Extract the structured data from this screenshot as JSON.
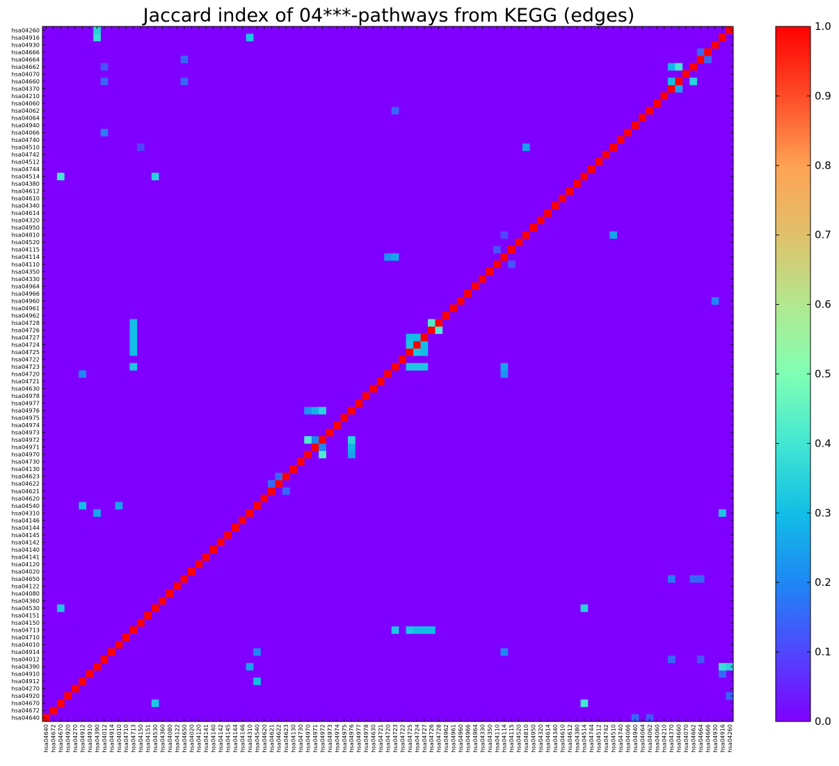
{
  "chart_data": {
    "type": "heatmap",
    "title": "Jaccard index of 04***-pathways from KEGG (edges)",
    "xlabel": "",
    "ylabel": "",
    "labels": [
      "hsa04640",
      "hsa04672",
      "hsa04670",
      "hsa04920",
      "hsa04270",
      "hsa04912",
      "hsa04910",
      "hsa04390",
      "hsa04012",
      "hsa04914",
      "hsa04010",
      "hsa04710",
      "hsa04713",
      "hsa04150",
      "hsa04151",
      "hsa04530",
      "hsa04360",
      "hsa04080",
      "hsa04122",
      "hsa04650",
      "hsa04020",
      "hsa04120",
      "hsa04141",
      "hsa04140",
      "hsa04142",
      "hsa04145",
      "hsa04144",
      "hsa04146",
      "hsa04310",
      "hsa04540",
      "hsa04620",
      "hsa04621",
      "hsa04622",
      "hsa04623",
      "hsa04130",
      "hsa04730",
      "hsa04970",
      "hsa04971",
      "hsa04972",
      "hsa04973",
      "hsa04974",
      "hsa04975",
      "hsa04976",
      "hsa04977",
      "hsa04978",
      "hsa04630",
      "hsa04721",
      "hsa04720",
      "hsa04723",
      "hsa04722",
      "hsa04725",
      "hsa04724",
      "hsa04727",
      "hsa04726",
      "hsa04728",
      "hsa04962",
      "hsa04961",
      "hsa04960",
      "hsa04966",
      "hsa04964",
      "hsa04330",
      "hsa04350",
      "hsa04110",
      "hsa04114",
      "hsa04115",
      "hsa04520",
      "hsa04810",
      "hsa04950",
      "hsa04320",
      "hsa04614",
      "hsa04340",
      "hsa04610",
      "hsa04612",
      "hsa04380",
      "hsa04514",
      "hsa04744",
      "hsa04512",
      "hsa04742",
      "hsa04510",
      "hsa04740",
      "hsa04066",
      "hsa04940",
      "hsa04064",
      "hsa04062",
      "hsa04060",
      "hsa04210",
      "hsa04370",
      "hsa04660",
      "hsa04070",
      "hsa04662",
      "hsa04664",
      "hsa04666",
      "hsa04930",
      "hsa04916",
      "hsa04260"
    ],
    "diagonal_value": 1.0,
    "background_value": 0.0,
    "highlights": [
      {
        "row": "hsa04916",
        "col": "hsa04390",
        "value": 0.38
      },
      {
        "row": "hsa04390",
        "col": "hsa04916",
        "value": 0.38
      },
      {
        "row": "hsa04916",
        "col": "hsa04310",
        "value": 0.32
      },
      {
        "row": "hsa04310",
        "col": "hsa04916",
        "value": 0.32
      },
      {
        "row": "hsa04514",
        "col": "hsa04670",
        "value": 0.4
      },
      {
        "row": "hsa04670",
        "col": "hsa04514",
        "value": 0.4
      },
      {
        "row": "hsa04514",
        "col": "hsa04530",
        "value": 0.35
      },
      {
        "row": "hsa04530",
        "col": "hsa04514",
        "value": 0.35
      },
      {
        "row": "hsa04510",
        "col": "hsa04810",
        "value": 0.25
      },
      {
        "row": "hsa04810",
        "col": "hsa04510",
        "value": 0.25
      },
      {
        "row": "hsa04660",
        "col": "hsa04370",
        "value": 0.3
      },
      {
        "row": "hsa04660",
        "col": "hsa04662",
        "value": 0.35
      },
      {
        "row": "hsa04662",
        "col": "hsa04660",
        "value": 0.4
      },
      {
        "row": "hsa04662",
        "col": "hsa04370",
        "value": 0.28
      },
      {
        "row": "hsa04370",
        "col": "hsa04660",
        "value": 0.25
      },
      {
        "row": "hsa04664",
        "col": "hsa04666",
        "value": 0.15
      },
      {
        "row": "hsa04666",
        "col": "hsa04664",
        "value": 0.15
      },
      {
        "row": "hsa04972",
        "col": "hsa04970",
        "value": 0.42
      },
      {
        "row": "hsa04970",
        "col": "hsa04972",
        "value": 0.42
      },
      {
        "row": "hsa04971",
        "col": "hsa04976",
        "value": 0.28
      },
      {
        "row": "hsa04976",
        "col": "hsa04971",
        "value": 0.28
      },
      {
        "row": "hsa04970",
        "col": "hsa04976",
        "value": 0.25
      },
      {
        "row": "hsa04976",
        "col": "hsa04970",
        "value": 0.22
      },
      {
        "row": "hsa04976",
        "col": "hsa04972",
        "value": 0.35
      },
      {
        "row": "hsa04972",
        "col": "hsa04976",
        "value": 0.35
      },
      {
        "row": "hsa04971",
        "col": "hsa04972",
        "value": 0.2
      },
      {
        "row": "hsa04972",
        "col": "hsa04971",
        "value": 0.2
      },
      {
        "row": "hsa04728",
        "col": "hsa04726",
        "value": 0.42
      },
      {
        "row": "hsa04726",
        "col": "hsa04728",
        "value": 0.42
      },
      {
        "row": "hsa04727",
        "col": "hsa04724",
        "value": 0.3
      },
      {
        "row": "hsa04724",
        "col": "hsa04727",
        "value": 0.3
      },
      {
        "row": "hsa04725",
        "col": "hsa04724",
        "value": 0.32
      },
      {
        "row": "hsa04724",
        "col": "hsa04725",
        "value": 0.32
      },
      {
        "row": "hsa04725",
        "col": "hsa04727",
        "value": 0.3
      },
      {
        "row": "hsa04727",
        "col": "hsa04725",
        "value": 0.3
      },
      {
        "row": "hsa04723",
        "col": "hsa04725",
        "value": 0.32
      },
      {
        "row": "hsa04723",
        "col": "hsa04724",
        "value": 0.32
      },
      {
        "row": "hsa04723",
        "col": "hsa04727",
        "value": 0.32
      },
      {
        "row": "hsa04713",
        "col": "hsa04723",
        "value": 0.32
      },
      {
        "row": "hsa04713",
        "col": "hsa04725",
        "value": 0.32
      },
      {
        "row": "hsa04713",
        "col": "hsa04724",
        "value": 0.3
      },
      {
        "row": "hsa04713",
        "col": "hsa04727",
        "value": 0.3
      },
      {
        "row": "hsa04713",
        "col": "hsa04726",
        "value": 0.3
      },
      {
        "row": "hsa04728",
        "col": "hsa04713",
        "value": 0.3
      },
      {
        "row": "hsa04726",
        "col": "hsa04713",
        "value": 0.3
      },
      {
        "row": "hsa04727",
        "col": "hsa04713",
        "value": 0.3
      },
      {
        "row": "hsa04724",
        "col": "hsa04713",
        "value": 0.3
      },
      {
        "row": "hsa04725",
        "col": "hsa04713",
        "value": 0.3
      },
      {
        "row": "hsa04723",
        "col": "hsa04713",
        "value": 0.32
      },
      {
        "row": "hsa04623",
        "col": "hsa04622",
        "value": 0.15
      },
      {
        "row": "hsa04622",
        "col": "hsa04621",
        "value": 0.15
      },
      {
        "row": "hsa04621",
        "col": "hsa04623",
        "value": 0.15
      },
      {
        "row": "hsa04540",
        "col": "hsa04912",
        "value": 0.3
      },
      {
        "row": "hsa04912",
        "col": "hsa04540",
        "value": 0.3
      },
      {
        "row": "hsa04540",
        "col": "hsa04010",
        "value": 0.25
      },
      {
        "row": "hsa04530",
        "col": "hsa04670",
        "value": 0.32
      },
      {
        "row": "hsa04670",
        "col": "hsa04530",
        "value": 0.32
      },
      {
        "row": "hsa04910",
        "col": "hsa04916",
        "value": 0.15
      },
      {
        "row": "hsa04390",
        "col": "hsa04260",
        "value": 0.35
      },
      {
        "row": "hsa04260",
        "col": "hsa04390",
        "value": 0.35
      },
      {
        "row": "hsa04310",
        "col": "hsa04390",
        "value": 0.25
      },
      {
        "row": "hsa04390",
        "col": "hsa04310",
        "value": 0.25
      },
      {
        "row": "hsa04720",
        "col": "hsa04912",
        "value": 0.2
      },
      {
        "row": "hsa04720",
        "col": "hsa04114",
        "value": 0.22
      },
      {
        "row": "hsa04114",
        "col": "hsa04720",
        "value": 0.22
      },
      {
        "row": "hsa04114",
        "col": "hsa04723",
        "value": 0.25
      },
      {
        "row": "hsa04723",
        "col": "hsa04114",
        "value": 0.25
      },
      {
        "row": "hsa04960",
        "col": "hsa04930",
        "value": 0.2
      },
      {
        "row": "hsa04914",
        "col": "hsa04540",
        "value": 0.2
      },
      {
        "row": "hsa04914",
        "col": "hsa04114",
        "value": 0.2
      },
      {
        "row": "hsa04650",
        "col": "hsa04370",
        "value": 0.18
      },
      {
        "row": "hsa04650",
        "col": "hsa04664",
        "value": 0.15
      },
      {
        "row": "hsa04650",
        "col": "hsa04662",
        "value": 0.15
      },
      {
        "row": "hsa04012",
        "col": "hsa04370",
        "value": 0.15
      },
      {
        "row": "hsa04012",
        "col": "hsa04664",
        "value": 0.12
      },
      {
        "row": "hsa04066",
        "col": "hsa04012",
        "value": 0.18
      },
      {
        "row": "hsa04062",
        "col": "hsa04723",
        "value": 0.15
      },
      {
        "row": "hsa04662",
        "col": "hsa04012",
        "value": 0.12
      },
      {
        "row": "hsa04664",
        "col": "hsa04650",
        "value": 0.15
      },
      {
        "row": "hsa04660",
        "col": "hsa04012",
        "value": 0.15
      },
      {
        "row": "hsa04660",
        "col": "hsa04650",
        "value": 0.15
      },
      {
        "row": "hsa04510",
        "col": "hsa04150",
        "value": 0.1
      },
      {
        "row": "hsa04810",
        "col": "hsa04114",
        "value": 0.1
      },
      {
        "row": "hsa04110",
        "col": "hsa04115",
        "value": 0.12
      },
      {
        "row": "hsa04115",
        "col": "hsa04110",
        "value": 0.12
      },
      {
        "row": "hsa04920",
        "col": "hsa04260",
        "value": 0.15
      },
      {
        "row": "hsa04640",
        "col": "hsa04940",
        "value": 0.15
      },
      {
        "row": "hsa04640",
        "col": "hsa04062",
        "value": 0.12
      },
      {
        "row": "hsa04672",
        "col": "hsa04640",
        "value": 0.0
      }
    ],
    "colorbar": {
      "min": 0.0,
      "max": 1.0,
      "ticks": [
        "0.0",
        "0.1",
        "0.2",
        "0.3",
        "0.4",
        "0.5",
        "0.6",
        "0.7",
        "0.8",
        "0.9",
        "1.0"
      ],
      "colormap": "rainbow"
    }
  }
}
